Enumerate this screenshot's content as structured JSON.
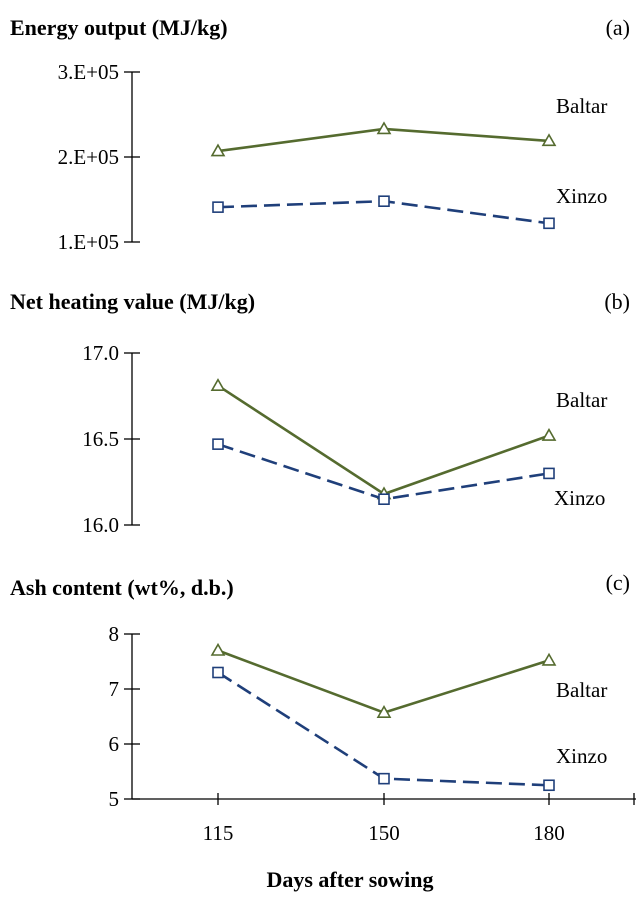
{
  "chart_data": [
    {
      "type": "line",
      "title": "Energy output (MJ/kg)",
      "panel": "(a)",
      "x": [
        115,
        150,
        180
      ],
      "ylim": [
        100000,
        300000
      ],
      "yticks": [
        100000,
        200000,
        300000
      ],
      "ytick_labels": [
        "1.E+05",
        "2.E+05",
        "3.E+05"
      ],
      "series": [
        {
          "name": "Baltar",
          "values": [
            207000,
            233000,
            219000
          ],
          "color": "#556b2f",
          "marker": "triangle",
          "dash": "solid"
        },
        {
          "name": "Xinzo",
          "values": [
            141000,
            148000,
            122000
          ],
          "color": "#1f3f7a",
          "marker": "square",
          "dash": "dashed"
        }
      ]
    },
    {
      "type": "line",
      "title": "Net heating value (MJ/kg)",
      "panel": "(b)",
      "x": [
        115,
        150,
        180
      ],
      "ylim": [
        16.0,
        17.0
      ],
      "yticks": [
        16.0,
        16.5,
        17.0
      ],
      "ytick_labels": [
        "16.0",
        "16.5",
        "17.0"
      ],
      "series": [
        {
          "name": "Baltar",
          "values": [
            16.81,
            16.18,
            16.52
          ],
          "color": "#556b2f",
          "marker": "triangle",
          "dash": "solid"
        },
        {
          "name": "Xinzo",
          "values": [
            16.47,
            16.15,
            16.3
          ],
          "color": "#1f3f7a",
          "marker": "square",
          "dash": "dashed"
        }
      ]
    },
    {
      "type": "line",
      "title": "Ash content (wt%, d.b.)",
      "panel": "(c)",
      "x": [
        115,
        150,
        180
      ],
      "xtick_labels": [
        "115",
        "150",
        "180"
      ],
      "xlabel": "Days after sowing",
      "ylim": [
        5,
        8
      ],
      "yticks": [
        5,
        6,
        7,
        8
      ],
      "ytick_labels": [
        "5",
        "6",
        "7",
        "8"
      ],
      "series": [
        {
          "name": "Baltar",
          "values": [
            7.7,
            6.57,
            7.52
          ],
          "color": "#556b2f",
          "marker": "triangle",
          "dash": "solid"
        },
        {
          "name": "Xinzo",
          "values": [
            7.3,
            5.37,
            5.25
          ],
          "color": "#1f3f7a",
          "marker": "square",
          "dash": "dashed"
        }
      ]
    }
  ]
}
